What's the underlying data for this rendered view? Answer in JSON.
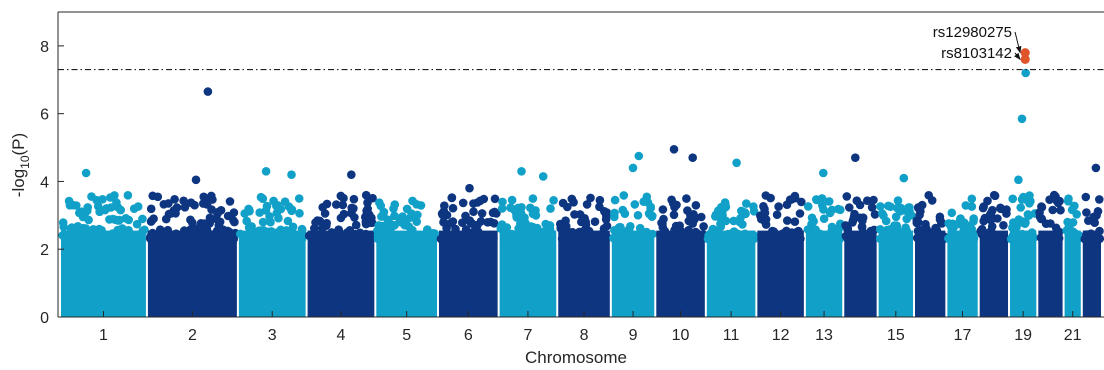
{
  "chart_data": {
    "type": "scatter",
    "title": "",
    "xlabel": "Chromosome",
    "ylabel_main": "-log",
    "ylabel_sub": "10",
    "ylabel_tail": "(P)",
    "ylim": [
      0,
      9
    ],
    "yticks": [
      0,
      2,
      4,
      6,
      8
    ],
    "grid": false,
    "significance_threshold": 7.3,
    "colors": {
      "light": "#10a0c8",
      "dark": "#0d3580",
      "highlight": "#e0542a",
      "line": "#1f1f1f"
    },
    "chromosomes": [
      {
        "label": "1",
        "color": "light"
      },
      {
        "label": "2",
        "color": "dark"
      },
      {
        "label": "3",
        "color": "light"
      },
      {
        "label": "4",
        "color": "dark"
      },
      {
        "label": "5",
        "color": "light"
      },
      {
        "label": "6",
        "color": "dark"
      },
      {
        "label": "7",
        "color": "light"
      },
      {
        "label": "8",
        "color": "dark"
      },
      {
        "label": "9",
        "color": "light"
      },
      {
        "label": "10",
        "color": "dark"
      },
      {
        "label": "11",
        "color": "light"
      },
      {
        "label": "12",
        "color": "dark"
      },
      {
        "label": "13",
        "color": "light"
      },
      {
        "label": "14",
        "color": "dark"
      },
      {
        "label": "15",
        "color": "light"
      },
      {
        "label": "16",
        "color": "dark"
      },
      {
        "label": "17",
        "color": "light"
      },
      {
        "label": "18",
        "color": "dark"
      },
      {
        "label": "19",
        "color": "light"
      },
      {
        "label": "20",
        "color": "dark"
      },
      {
        "label": "21",
        "color": "light"
      },
      {
        "label": "22",
        "color": "dark"
      }
    ],
    "xtick_labels": [
      "1",
      "2",
      "3",
      "4",
      "5",
      "6",
      "7",
      "8",
      "9",
      "10",
      "11",
      "12",
      "13",
      "15",
      "17",
      "19",
      "21"
    ],
    "notable_points": [
      {
        "chromosome": "1",
        "y": 4.25
      },
      {
        "chromosome": "2",
        "y": 6.65
      },
      {
        "chromosome": "2",
        "y": 4.05
      },
      {
        "chromosome": "3",
        "y": 4.3
      },
      {
        "chromosome": "3",
        "y": 4.2
      },
      {
        "chromosome": "4",
        "y": 4.2
      },
      {
        "chromosome": "6",
        "y": 3.8
      },
      {
        "chromosome": "7",
        "y": 4.3
      },
      {
        "chromosome": "7",
        "y": 4.15
      },
      {
        "chromosome": "9",
        "y": 4.75
      },
      {
        "chromosome": "9",
        "y": 4.4
      },
      {
        "chromosome": "10",
        "y": 4.95
      },
      {
        "chromosome": "10",
        "y": 4.7
      },
      {
        "chromosome": "11",
        "y": 4.55
      },
      {
        "chromosome": "13",
        "y": 4.25
      },
      {
        "chromosome": "14",
        "y": 4.7
      },
      {
        "chromosome": "15",
        "y": 4.1
      },
      {
        "chromosome": "19",
        "y": 7.2
      },
      {
        "chromosome": "19",
        "y": 5.85
      },
      {
        "chromosome": "19",
        "y": 4.05
      },
      {
        "chromosome": "22",
        "y": 4.4
      }
    ],
    "highlighted_snps": [
      {
        "label": "rs12980275",
        "chromosome": "19",
        "y": 7.8
      },
      {
        "label": "rs8103142",
        "chromosome": "19",
        "y": 7.6
      }
    ]
  }
}
